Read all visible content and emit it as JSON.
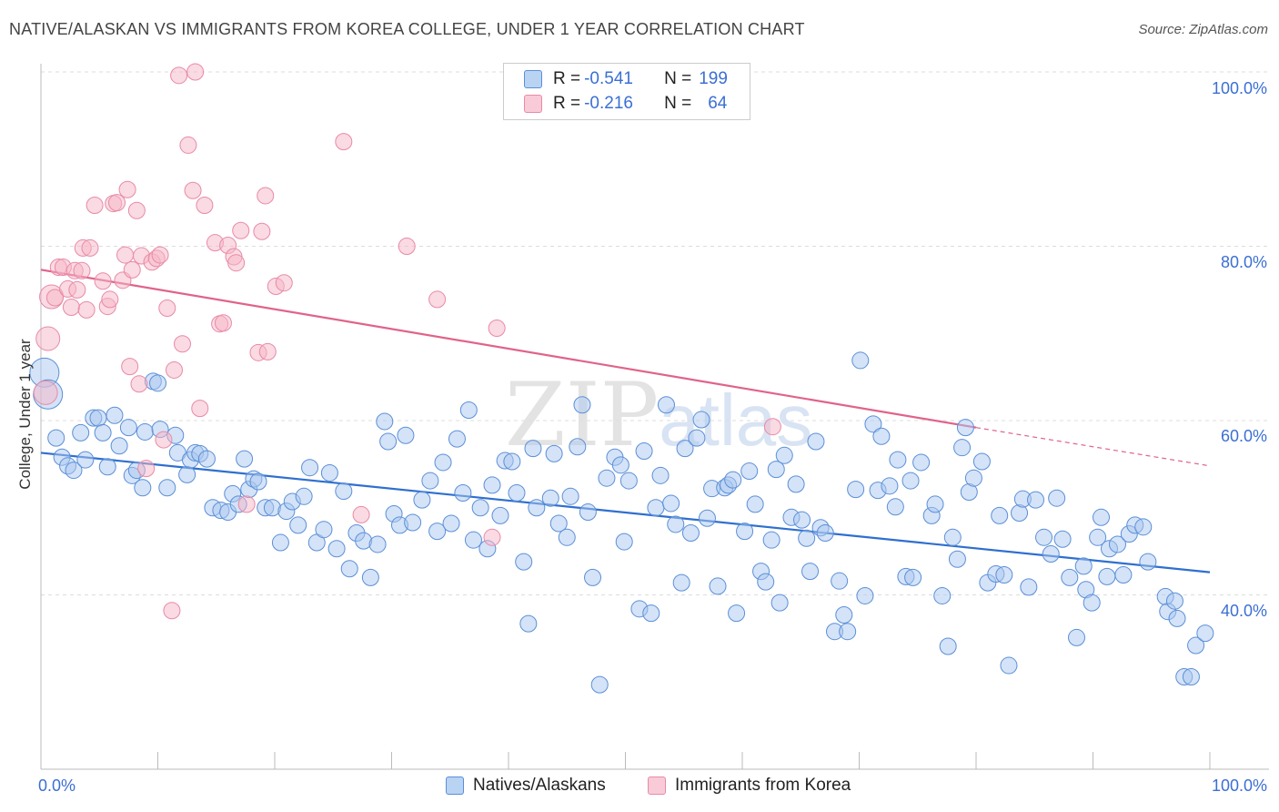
{
  "title": "NATIVE/ALASKAN VS IMMIGRANTS FROM KOREA COLLEGE, UNDER 1 YEAR CORRELATION CHART",
  "source": "Source: ZipAtlas.com",
  "watermark": {
    "zip": "ZIP",
    "atlas": "atlas"
  },
  "legend": {
    "rows": [
      {
        "r_label": "R = ",
        "r_value": "-0.541",
        "n_label": "N = ",
        "n_value": "199"
      },
      {
        "r_label": "R = ",
        "r_value": "-0.216",
        "n_label": "N = ",
        "n_value": "64"
      }
    ]
  },
  "colors": {
    "blue_fill": "#a9c8f0",
    "blue_stroke": "#5b8fd8",
    "blue_line": "#2f6fcf",
    "pink_fill": "#f5b6c8",
    "pink_stroke": "#e88aa6",
    "pink_line": "#e0638a",
    "grid": "#dddddd",
    "tick_text": "#3b6fd4"
  },
  "chart_data": {
    "type": "scatter",
    "xlabel": "",
    "ylabel": "College, Under 1 year",
    "x_ticks": [
      "0.0%",
      "100.0%"
    ],
    "y_ticks": [
      "40.0%",
      "60.0%",
      "80.0%",
      "100.0%"
    ],
    "xlim": [
      0,
      100
    ],
    "ylim": [
      20,
      101
    ],
    "grid": true,
    "legend_position": "top-center and bottom",
    "series": [
      {
        "name": "Natives/Alaskans",
        "R": -0.541,
        "N": 199,
        "trend": {
          "x": [
            0,
            100
          ],
          "y": [
            56.3,
            42.6
          ]
        },
        "points": [
          [
            0.3,
            65.5
          ],
          [
            0.6,
            63
          ],
          [
            1.3,
            58
          ],
          [
            1.8,
            55.8
          ],
          [
            2.3,
            54.8
          ],
          [
            2.8,
            54.3
          ],
          [
            3.4,
            58.6
          ],
          [
            3.8,
            55.5
          ],
          [
            4.5,
            60.3
          ],
          [
            4.9,
            60.3
          ],
          [
            5.3,
            58.6
          ],
          [
            5.7,
            54.7
          ],
          [
            6.3,
            60.6
          ],
          [
            6.7,
            57.1
          ],
          [
            7.5,
            59.2
          ],
          [
            7.8,
            53.7
          ],
          [
            8.2,
            54.3
          ],
          [
            8.7,
            52.3
          ],
          [
            8.9,
            58.7
          ],
          [
            9.6,
            64.5
          ],
          [
            10,
            64.3
          ],
          [
            10.2,
            59
          ],
          [
            10.8,
            52.3
          ],
          [
            11.5,
            58.3
          ],
          [
            11.7,
            56.3
          ],
          [
            12.5,
            53.8
          ],
          [
            12.8,
            55.5
          ],
          [
            13.2,
            56.3
          ],
          [
            13.6,
            56.2
          ],
          [
            14.2,
            55.6
          ],
          [
            14.7,
            50
          ],
          [
            15.4,
            49.7
          ],
          [
            16,
            49.5
          ],
          [
            16.4,
            51.6
          ],
          [
            16.9,
            50.4
          ],
          [
            17.4,
            55.6
          ],
          [
            17.8,
            52.1
          ],
          [
            18.2,
            53.3
          ],
          [
            18.6,
            53
          ],
          [
            19.2,
            50
          ],
          [
            19.8,
            50
          ],
          [
            20.5,
            46
          ],
          [
            21,
            49.6
          ],
          [
            21.5,
            50.7
          ],
          [
            22,
            48
          ],
          [
            22.5,
            51.3
          ],
          [
            23,
            54.6
          ],
          [
            23.6,
            46
          ],
          [
            24.2,
            47.5
          ],
          [
            24.7,
            54
          ],
          [
            25.3,
            45.3
          ],
          [
            25.9,
            51.9
          ],
          [
            26.4,
            43
          ],
          [
            27,
            47.1
          ],
          [
            27.6,
            46.2
          ],
          [
            28.2,
            42
          ],
          [
            28.8,
            45.8
          ],
          [
            29.4,
            59.9
          ],
          [
            29.7,
            57.6
          ],
          [
            30.2,
            49.3
          ],
          [
            30.7,
            48
          ],
          [
            31.2,
            58.3
          ],
          [
            31.8,
            48.3
          ],
          [
            32.6,
            50.9
          ],
          [
            33.3,
            53.1
          ],
          [
            33.9,
            47.3
          ],
          [
            34.4,
            55.2
          ],
          [
            35.1,
            48.2
          ],
          [
            35.6,
            57.9
          ],
          [
            36.1,
            51.7
          ],
          [
            36.6,
            61.2
          ],
          [
            37,
            46.3
          ],
          [
            37.6,
            50
          ],
          [
            38.2,
            45.3
          ],
          [
            38.6,
            52.6
          ],
          [
            39.3,
            49.1
          ],
          [
            39.7,
            55.4
          ],
          [
            40.3,
            55.3
          ],
          [
            40.7,
            51.7
          ],
          [
            41.3,
            43.8
          ],
          [
            41.7,
            36.7
          ],
          [
            42.1,
            56.8
          ],
          [
            42.4,
            50
          ],
          [
            43.6,
            51.1
          ],
          [
            43.9,
            56.2
          ],
          [
            44.3,
            48.2
          ],
          [
            45,
            46.6
          ],
          [
            45.3,
            51.3
          ],
          [
            45.9,
            57
          ],
          [
            46.3,
            61.8
          ],
          [
            46.8,
            49.5
          ],
          [
            47.2,
            42
          ],
          [
            47.8,
            29.7
          ],
          [
            48.4,
            53.4
          ],
          [
            49.1,
            55.8
          ],
          [
            49.6,
            54.9
          ],
          [
            49.9,
            46.1
          ],
          [
            50.3,
            53.1
          ],
          [
            51.2,
            38.4
          ],
          [
            51.6,
            56.5
          ],
          [
            52.2,
            37.9
          ],
          [
            52.6,
            50
          ],
          [
            53,
            53.7
          ],
          [
            53.5,
            61.8
          ],
          [
            53.9,
            50.5
          ],
          [
            54.3,
            48.1
          ],
          [
            54.8,
            41.4
          ],
          [
            55.1,
            56.8
          ],
          [
            55.6,
            47.1
          ],
          [
            56.1,
            58
          ],
          [
            56.5,
            60.1
          ],
          [
            57,
            48.8
          ],
          [
            57.4,
            52.2
          ],
          [
            57.9,
            41
          ],
          [
            58.5,
            52.3
          ],
          [
            58.8,
            52.6
          ],
          [
            59.2,
            53.2
          ],
          [
            59.5,
            37.9
          ],
          [
            60.2,
            47.3
          ],
          [
            60.6,
            54.2
          ],
          [
            61.1,
            50.4
          ],
          [
            61.6,
            42.7
          ],
          [
            62,
            41.5
          ],
          [
            62.5,
            46.3
          ],
          [
            62.9,
            54.4
          ],
          [
            63.2,
            39.1
          ],
          [
            63.6,
            56
          ],
          [
            64.2,
            48.9
          ],
          [
            64.6,
            52.7
          ],
          [
            65.1,
            48.6
          ],
          [
            65.5,
            46.5
          ],
          [
            65.8,
            42.7
          ],
          [
            66.3,
            57.6
          ],
          [
            66.7,
            47.7
          ],
          [
            67.1,
            47.1
          ],
          [
            67.9,
            35.8
          ],
          [
            68.3,
            41.6
          ],
          [
            68.7,
            37.7
          ],
          [
            69,
            35.8
          ],
          [
            69.7,
            52.1
          ],
          [
            70.1,
            66.9
          ],
          [
            70.5,
            39.9
          ],
          [
            71.2,
            59.6
          ],
          [
            71.6,
            52
          ],
          [
            71.9,
            58.2
          ],
          [
            72.6,
            52.5
          ],
          [
            73.1,
            50.1
          ],
          [
            73.3,
            55.5
          ],
          [
            74,
            42.1
          ],
          [
            74.4,
            53.1
          ],
          [
            74.6,
            42
          ],
          [
            75.3,
            55.2
          ],
          [
            76.2,
            49.1
          ],
          [
            76.5,
            50.4
          ],
          [
            77.1,
            39.9
          ],
          [
            77.6,
            34.1
          ],
          [
            78,
            46.6
          ],
          [
            78.4,
            44.1
          ],
          [
            78.8,
            56.9
          ],
          [
            79.1,
            59.2
          ],
          [
            79.4,
            51.8
          ],
          [
            79.8,
            53.4
          ],
          [
            80.5,
            55.3
          ],
          [
            81,
            41.4
          ],
          [
            81.7,
            42.4
          ],
          [
            82,
            49.1
          ],
          [
            82.4,
            42.3
          ],
          [
            82.8,
            31.9
          ],
          [
            83.7,
            49.4
          ],
          [
            84,
            51
          ],
          [
            84.5,
            40.9
          ],
          [
            85.1,
            50.9
          ],
          [
            85.8,
            46.6
          ],
          [
            86.4,
            44.7
          ],
          [
            86.9,
            51.1
          ],
          [
            87.4,
            46.4
          ],
          [
            88,
            42
          ],
          [
            88.6,
            35.1
          ],
          [
            89.2,
            43.3
          ],
          [
            89.4,
            40.6
          ],
          [
            89.9,
            39.1
          ],
          [
            90.4,
            46.6
          ],
          [
            90.7,
            48.9
          ],
          [
            91.2,
            42.1
          ],
          [
            91.4,
            45.3
          ],
          [
            92.1,
            45.8
          ],
          [
            92.6,
            42.3
          ],
          [
            93.1,
            47
          ],
          [
            93.6,
            48
          ],
          [
            94.3,
            47.8
          ],
          [
            94.7,
            43.8
          ],
          [
            96.2,
            39.8
          ],
          [
            96.4,
            38.1
          ],
          [
            97,
            39.3
          ],
          [
            97.2,
            37.3
          ],
          [
            97.8,
            30.6
          ],
          [
            98.4,
            30.6
          ],
          [
            98.8,
            34.2
          ],
          [
            99.6,
            35.6
          ]
        ]
      },
      {
        "name": "Immigrants from Korea",
        "R": -0.216,
        "N": 64,
        "trend": {
          "x": [
            0,
            80
          ],
          "y": [
            77.3,
            59.2
          ],
          "dashed_x": [
            80,
            100
          ],
          "dashed_y": [
            59.2,
            54.8
          ]
        },
        "points": [
          [
            0.4,
            63.2
          ],
          [
            0.6,
            69.4
          ],
          [
            0.9,
            74.2
          ],
          [
            1.2,
            74.1
          ],
          [
            1.5,
            77.6
          ],
          [
            1.9,
            77.6
          ],
          [
            2.3,
            75.1
          ],
          [
            2.6,
            73
          ],
          [
            2.9,
            77.2
          ],
          [
            3.1,
            75
          ],
          [
            3.5,
            77.2
          ],
          [
            3.6,
            79.8
          ],
          [
            3.9,
            72.7
          ],
          [
            4.2,
            79.8
          ],
          [
            4.6,
            84.7
          ],
          [
            5.3,
            76
          ],
          [
            5.7,
            73.1
          ],
          [
            5.9,
            73.9
          ],
          [
            6.2,
            84.9
          ],
          [
            6.5,
            85
          ],
          [
            7,
            76.1
          ],
          [
            7.2,
            79
          ],
          [
            7.4,
            86.5
          ],
          [
            7.6,
            66.2
          ],
          [
            7.8,
            77.3
          ],
          [
            8.2,
            84.1
          ],
          [
            8.4,
            64.2
          ],
          [
            8.6,
            78.9
          ],
          [
            9,
            54.5
          ],
          [
            9.5,
            78.2
          ],
          [
            9.9,
            78.6
          ],
          [
            10.2,
            79
          ],
          [
            10.5,
            57.8
          ],
          [
            10.8,
            72.9
          ],
          [
            11.2,
            38.2
          ],
          [
            11.4,
            65.8
          ],
          [
            11.8,
            99.6
          ],
          [
            12.1,
            68.8
          ],
          [
            12.6,
            91.6
          ],
          [
            13,
            86.4
          ],
          [
            13.2,
            100
          ],
          [
            13.6,
            61.4
          ],
          [
            14,
            84.7
          ],
          [
            14.9,
            80.4
          ],
          [
            15.3,
            71.1
          ],
          [
            15.6,
            71.2
          ],
          [
            16,
            80.1
          ],
          [
            16.5,
            78.8
          ],
          [
            16.7,
            78.1
          ],
          [
            17.1,
            81.8
          ],
          [
            17.6,
            50.4
          ],
          [
            18.6,
            67.8
          ],
          [
            18.9,
            81.7
          ],
          [
            19.2,
            85.8
          ],
          [
            19.4,
            67.9
          ],
          [
            20.1,
            75.4
          ],
          [
            20.8,
            75.8
          ],
          [
            25.9,
            92
          ],
          [
            27.4,
            49.2
          ],
          [
            31.3,
            80
          ],
          [
            33.9,
            73.9
          ],
          [
            38.6,
            46.6
          ],
          [
            39,
            70.6
          ],
          [
            62.6,
            59.3
          ]
        ]
      }
    ]
  },
  "bottom_legend": [
    "Natives/Alaskans",
    "Immigrants from Korea"
  ]
}
